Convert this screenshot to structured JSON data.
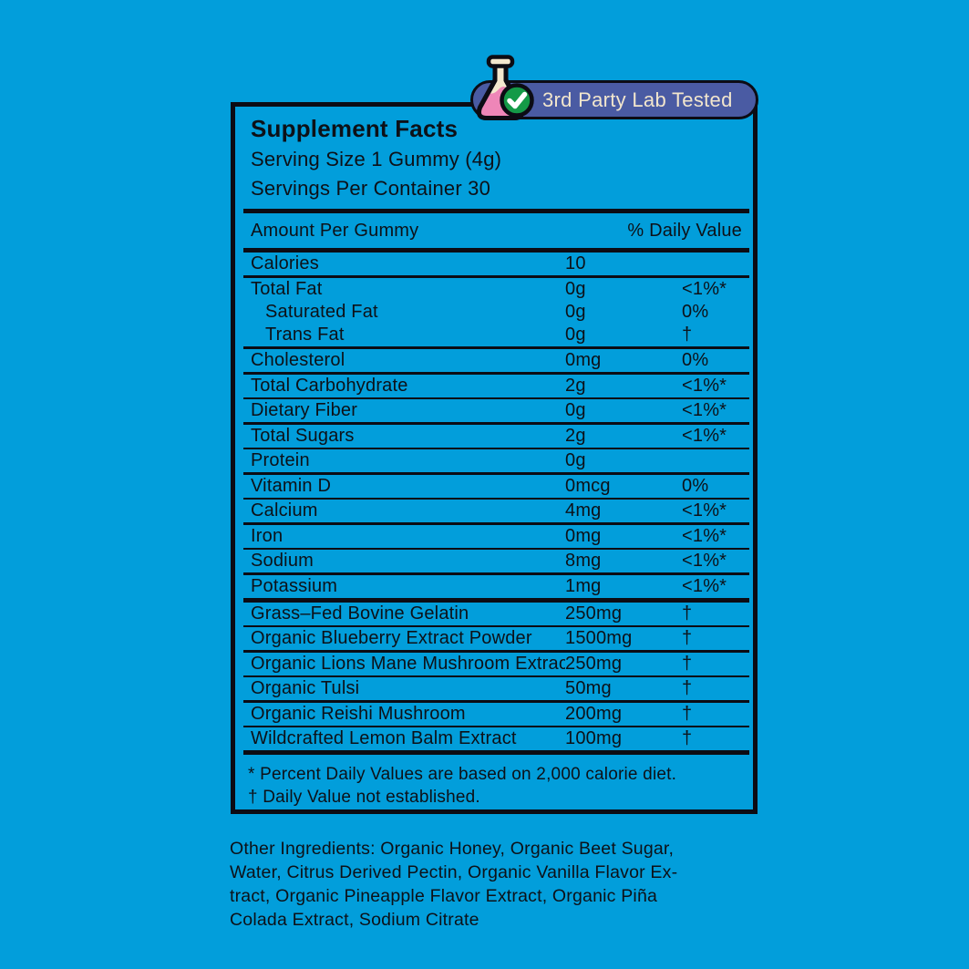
{
  "badge": {
    "label": "3rd Party Lab Tested",
    "icons": [
      "flask-icon",
      "check-icon"
    ],
    "pill_color": "#4a5ba3",
    "text_color": "#f2e6cd",
    "flask_cream": "#f3e8ce",
    "flask_pink": "#ee86b8",
    "check_green": "#149a47"
  },
  "colors": {
    "background": "#029edb",
    "ink": "#0d1118",
    "outline": "#0c0c14"
  },
  "panel": {
    "title": "Supplement Facts",
    "serving_size": "Serving Size 1 Gummy (4g)",
    "servings_per_container": "Servings Per Container 30",
    "column_left": "Amount Per Gummy",
    "column_right": "% Daily Value",
    "rows": [
      {
        "name": "Calories",
        "amount": "10",
        "dv": "",
        "indent": false,
        "sep": "medium"
      },
      {
        "name": "Total Fat",
        "amount": "0g",
        "dv": "<1%*",
        "indent": false,
        "sep": "none"
      },
      {
        "name": "Saturated Fat",
        "amount": "0g",
        "dv": "0%",
        "indent": true,
        "sep": "none"
      },
      {
        "name": "Trans Fat",
        "amount": "0g",
        "dv": "†",
        "indent": true,
        "sep": "medium"
      },
      {
        "name": "Cholesterol",
        "amount": "0mg",
        "dv": "0%",
        "indent": false,
        "sep": "thin"
      },
      {
        "name": "Total Carbohydrate",
        "amount": "2g",
        "dv": "<1%*",
        "indent": false,
        "sep": "thin"
      },
      {
        "name": "Dietary Fiber",
        "amount": "0g",
        "dv": "<1%*",
        "indent": false,
        "sep": "thin"
      },
      {
        "name": "Total Sugars",
        "amount": "2g",
        "dv": "<1%*",
        "indent": false,
        "sep": "thin"
      },
      {
        "name": "Protein",
        "amount": "0g",
        "dv": "",
        "indent": false,
        "sep": "thin"
      },
      {
        "name": "Vitamin D",
        "amount": "0mcg",
        "dv": "0%",
        "indent": false,
        "sep": "thin"
      },
      {
        "name": "Calcium",
        "amount": "4mg",
        "dv": "<1%*",
        "indent": false,
        "sep": "thin"
      },
      {
        "name": "Iron",
        "amount": "0mg",
        "dv": "<1%*",
        "indent": false,
        "sep": "thin"
      },
      {
        "name": "Sodium",
        "amount": "8mg",
        "dv": "<1%*",
        "indent": false,
        "sep": "thin"
      },
      {
        "name": "Potassium",
        "amount": "1mg",
        "dv": "<1%*",
        "indent": false,
        "sep": "thick"
      },
      {
        "name": "Grass–Fed Bovine Gelatin",
        "amount": "250mg",
        "dv": "†",
        "indent": false,
        "sep": "thin"
      },
      {
        "name": "Organic Blueberry Extract Powder",
        "amount": "1500mg",
        "dv": "†",
        "indent": false,
        "sep": "thin"
      },
      {
        "name": "Organic Lions Mane Mushroom Extract",
        "amount": "250mg",
        "dv": "†",
        "indent": false,
        "sep": "thin"
      },
      {
        "name": "Organic Tulsi",
        "amount": "50mg",
        "dv": "†",
        "indent": false,
        "sep": "thin"
      },
      {
        "name": "Organic Reishi Mushroom",
        "amount": "200mg",
        "dv": "†",
        "indent": false,
        "sep": "thin"
      },
      {
        "name": "Wildcrafted Lemon Balm Extract",
        "amount": "100mg",
        "dv": "†",
        "indent": false,
        "sep": "thick"
      }
    ],
    "footnotes": "* Percent Daily Values are based on 2,000 calorie diet.\n† Daily Value not established."
  },
  "other_ingredients": {
    "text": "Other Ingredients: Organic Honey, Organic Beet Sugar,\nWater, Citrus Derived Pectin, Organic Vanilla Flavor Ex-\ntract, Organic Pineapple Flavor Extract, Organic Piña\nColada Extract, Sodium Citrate"
  }
}
